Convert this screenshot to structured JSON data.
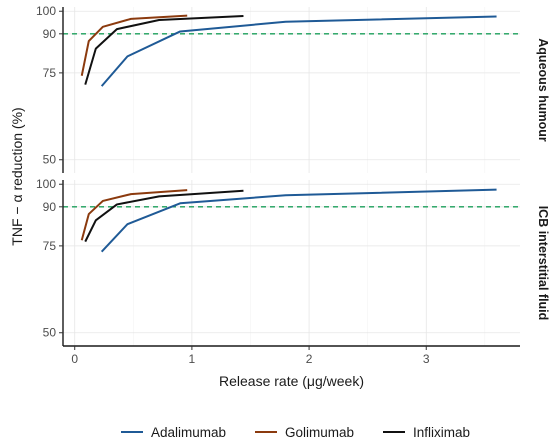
{
  "chart_data": {
    "type": "line",
    "xlabel": "Release rate (μg/week)",
    "ylabel": "TNF − α reduction (%)",
    "y_scale": "log",
    "xlim": [
      -0.1,
      3.8
    ],
    "x_ticks": [
      0,
      1,
      2,
      3
    ],
    "ylim": [
      47,
      102
    ],
    "y_ticks": [
      50,
      75,
      90,
      100
    ],
    "grid": true,
    "legend_position": "bottom",
    "reference_line": {
      "y": 90,
      "style": "dashed",
      "color": "#1b9e5a"
    },
    "series_styles": [
      {
        "name": "Adalimumab",
        "color": "#1f5a96"
      },
      {
        "name": "Golimumab",
        "color": "#8b3a0e"
      },
      {
        "name": "Infliximab",
        "color": "#111111"
      }
    ],
    "panels": [
      {
        "strip_label": "Aqueous humour",
        "series": [
          {
            "name": "Adalimumab",
            "points": [
              [
                0.23,
                70.5
              ],
              [
                0.45,
                81
              ],
              [
                0.9,
                91
              ],
              [
                1.8,
                95.2
              ],
              [
                3.6,
                97.6
              ]
            ]
          },
          {
            "name": "Golimumab",
            "points": [
              [
                0.06,
                74
              ],
              [
                0.12,
                87
              ],
              [
                0.24,
                93
              ],
              [
                0.48,
                96.5
              ],
              [
                0.96,
                98
              ]
            ]
          },
          {
            "name": "Infliximab",
            "points": [
              [
                0.09,
                71
              ],
              [
                0.18,
                84
              ],
              [
                0.36,
                92
              ],
              [
                0.72,
                96
              ],
              [
                1.44,
                97.8
              ]
            ]
          }
        ]
      },
      {
        "strip_label": "ICB interstitial fluid",
        "series": [
          {
            "name": "Adalimumab",
            "points": [
              [
                0.23,
                73
              ],
              [
                0.45,
                83
              ],
              [
                0.9,
                91.5
              ],
              [
                1.8,
                95
              ],
              [
                3.6,
                97.5
              ]
            ]
          },
          {
            "name": "Golimumab",
            "points": [
              [
                0.06,
                77
              ],
              [
                0.12,
                87
              ],
              [
                0.24,
                92.5
              ],
              [
                0.48,
                95.5
              ],
              [
                0.96,
                97.3
              ]
            ]
          },
          {
            "name": "Infliximab",
            "points": [
              [
                0.09,
                76.5
              ],
              [
                0.18,
                84.5
              ],
              [
                0.36,
                91
              ],
              [
                0.72,
                94.5
              ],
              [
                1.44,
                97
              ]
            ]
          }
        ]
      }
    ]
  },
  "legend": {
    "items": [
      {
        "label": "Adalimumab",
        "color": "#1f5a96"
      },
      {
        "label": "Golimumab",
        "color": "#8b3a0e"
      },
      {
        "label": "Infliximab",
        "color": "#111111"
      }
    ]
  }
}
